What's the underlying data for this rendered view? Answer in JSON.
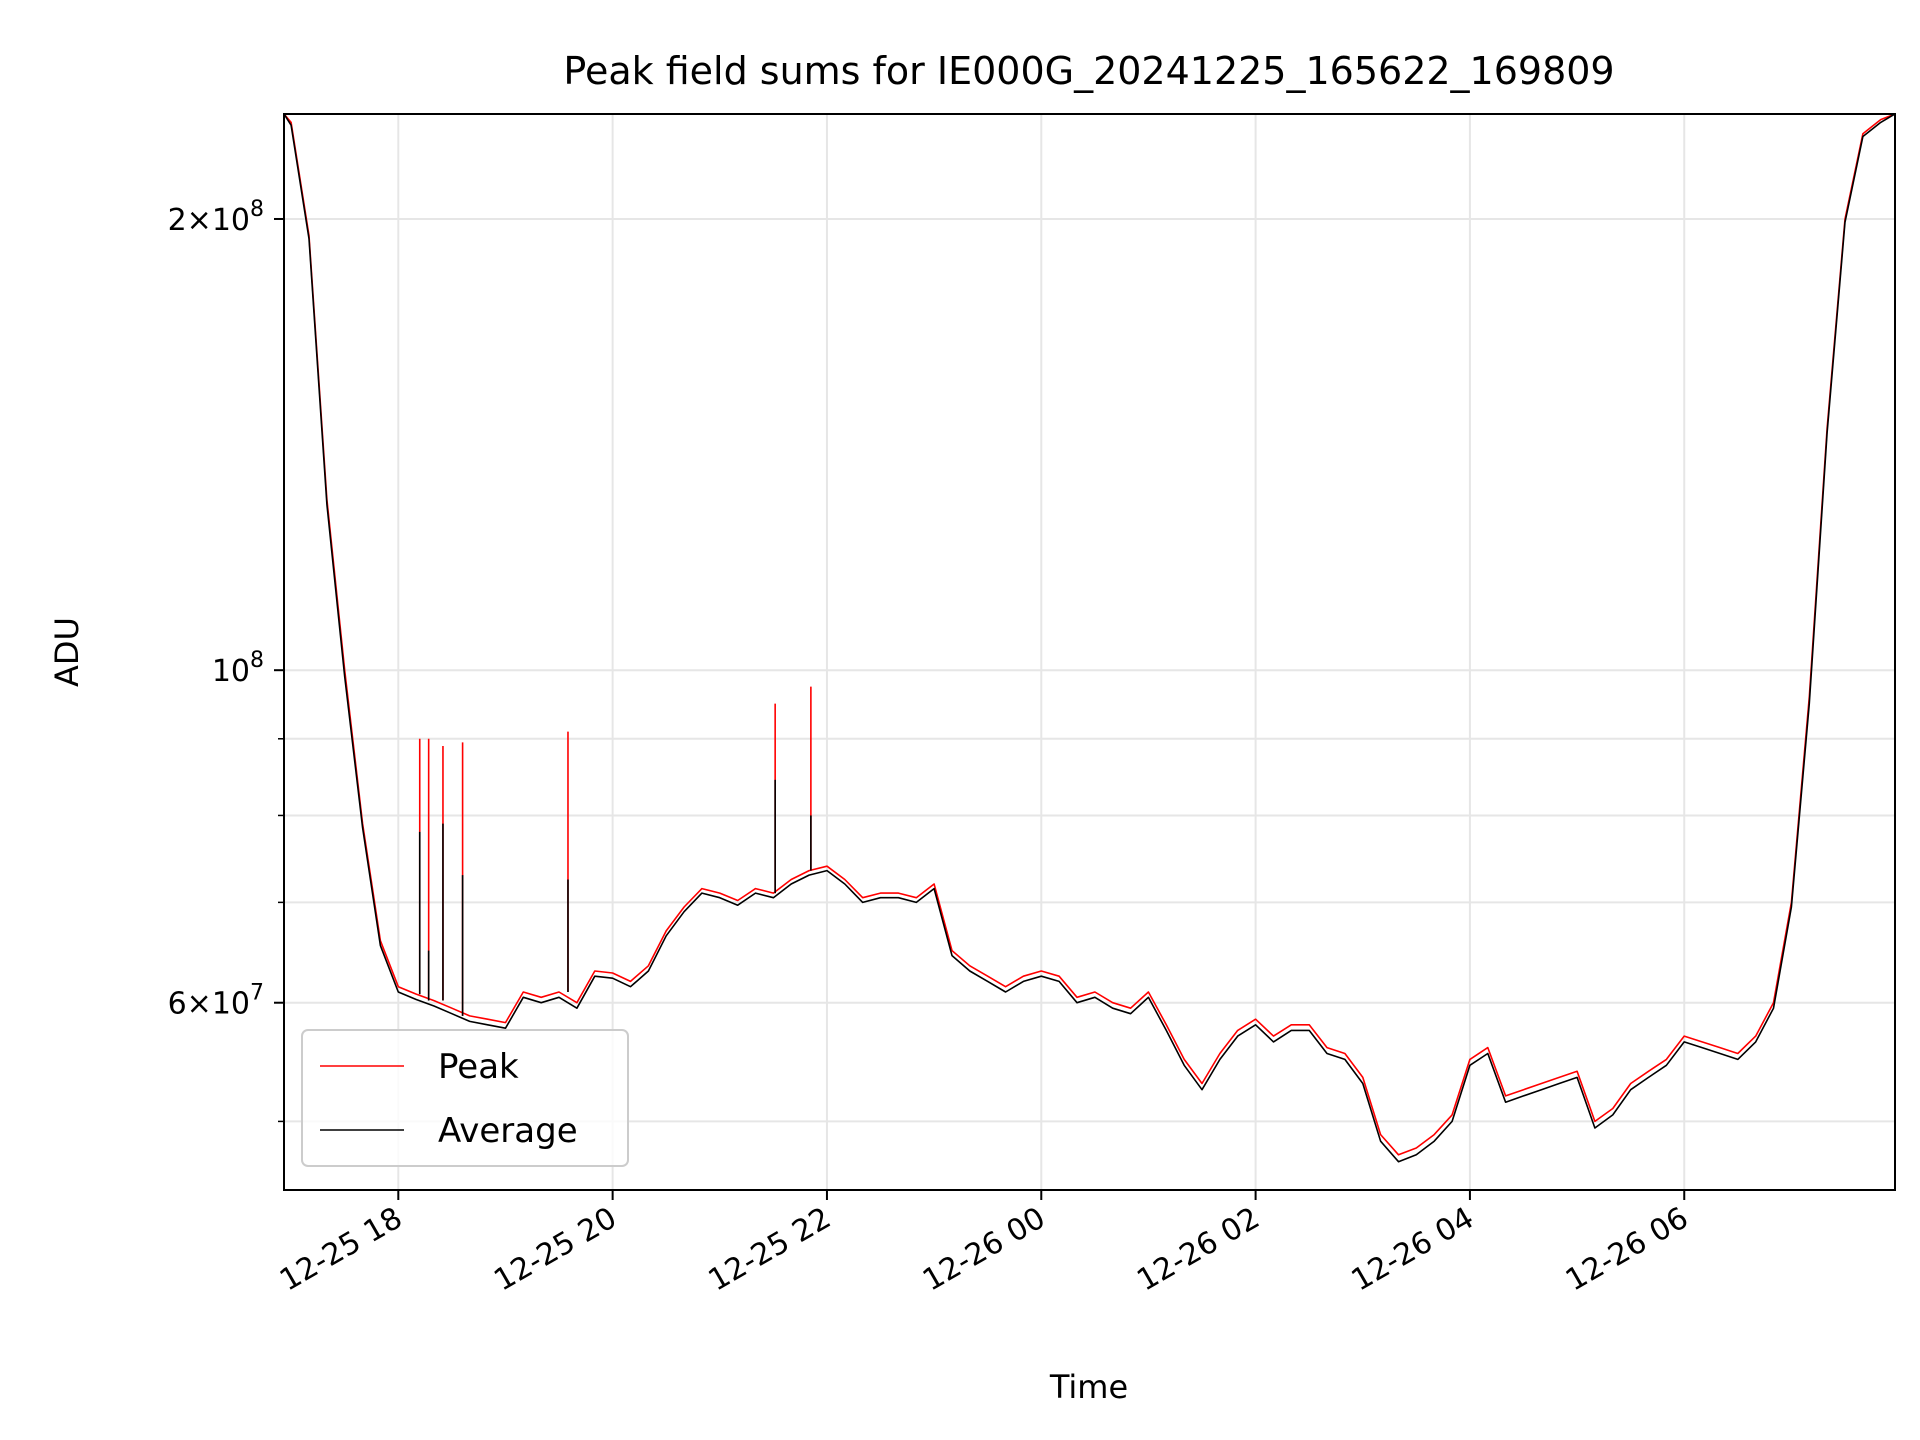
{
  "chart_data": {
    "type": "line",
    "title": "Peak field sums for IE000G_20241225_165622_169809",
    "xlabel": "Time",
    "ylabel": "ADU",
    "y_scale": "log",
    "ylim": [
      45000000,
      235000000
    ],
    "xlim": [
      "2024-12-25 16:56",
      "2024-12-26 07:58"
    ],
    "grid": true,
    "legend_position": "lower-left",
    "x_ticks": [
      "2024-12-25 18:00",
      "2024-12-25 20:00",
      "2024-12-25 22:00",
      "2024-12-26 00:00",
      "2024-12-26 02:00",
      "2024-12-26 04:00",
      "2024-12-26 06:00"
    ],
    "x_tick_labels": [
      "12-25 18",
      "12-25 20",
      "12-25 22",
      "12-26 00",
      "12-26 02",
      "12-26 04",
      "12-26 06"
    ],
    "y_ticks": [
      {
        "value": 200000000,
        "label": "2×10",
        "exp": "8"
      },
      {
        "value": 100000000,
        "label": "10",
        "exp": "8"
      },
      {
        "value": 60000000,
        "label": "6×10",
        "exp": "7"
      }
    ],
    "y_minor_ticks": [
      50000000,
      70000000,
      80000000,
      90000000
    ],
    "series": [
      {
        "name": "Peak",
        "color": "#ff0000",
        "x": [
          "2024-12-25 16:56",
          "2024-12-25 17:00",
          "2024-12-25 17:10",
          "2024-12-25 17:20",
          "2024-12-25 17:30",
          "2024-12-25 17:40",
          "2024-12-25 17:50",
          "2024-12-25 18:00",
          "2024-12-25 18:10",
          "2024-12-25 18:20",
          "2024-12-25 18:30",
          "2024-12-25 18:40",
          "2024-12-25 18:50",
          "2024-12-25 19:00",
          "2024-12-25 19:10",
          "2024-12-25 19:20",
          "2024-12-25 19:30",
          "2024-12-25 19:40",
          "2024-12-25 19:50",
          "2024-12-25 20:00",
          "2024-12-25 20:10",
          "2024-12-25 20:20",
          "2024-12-25 20:30",
          "2024-12-25 20:40",
          "2024-12-25 20:50",
          "2024-12-25 21:00",
          "2024-12-25 21:10",
          "2024-12-25 21:20",
          "2024-12-25 21:30",
          "2024-12-25 21:40",
          "2024-12-25 21:50",
          "2024-12-25 22:00",
          "2024-12-25 22:10",
          "2024-12-25 22:20",
          "2024-12-25 22:30",
          "2024-12-25 22:40",
          "2024-12-25 22:50",
          "2024-12-25 23:00",
          "2024-12-25 23:10",
          "2024-12-25 23:20",
          "2024-12-25 23:30",
          "2024-12-25 23:40",
          "2024-12-25 23:50",
          "2024-12-26 00:00",
          "2024-12-26 00:10",
          "2024-12-26 00:20",
          "2024-12-26 00:30",
          "2024-12-26 00:40",
          "2024-12-26 00:50",
          "2024-12-26 01:00",
          "2024-12-26 01:10",
          "2024-12-26 01:20",
          "2024-12-26 01:30",
          "2024-12-26 01:40",
          "2024-12-26 01:50",
          "2024-12-26 02:00",
          "2024-12-26 02:10",
          "2024-12-26 02:20",
          "2024-12-26 02:30",
          "2024-12-26 02:40",
          "2024-12-26 02:50",
          "2024-12-26 03:00",
          "2024-12-26 03:10",
          "2024-12-26 03:20",
          "2024-12-26 03:30",
          "2024-12-26 03:40",
          "2024-12-26 03:50",
          "2024-12-26 04:00",
          "2024-12-26 04:10",
          "2024-12-26 04:20",
          "2024-12-26 04:30",
          "2024-12-26 04:40",
          "2024-12-26 04:50",
          "2024-12-26 05:00",
          "2024-12-26 05:10",
          "2024-12-26 05:20",
          "2024-12-26 05:30",
          "2024-12-26 05:40",
          "2024-12-26 05:50",
          "2024-12-26 06:00",
          "2024-12-26 06:10",
          "2024-12-26 06:20",
          "2024-12-26 06:30",
          "2024-12-26 06:40",
          "2024-12-26 06:50",
          "2024-12-26 07:00",
          "2024-12-26 07:10",
          "2024-12-26 07:20",
          "2024-12-26 07:30",
          "2024-12-26 07:40",
          "2024-12-26 07:50",
          "2024-12-26 07:58"
        ],
        "y": [
          235000000,
          232000000,
          195000000,
          130000000,
          100000000,
          79000000,
          66000000,
          61500000,
          60800000,
          60200000,
          59500000,
          58800000,
          58500000,
          58200000,
          61000000,
          60500000,
          61000000,
          60000000,
          63000000,
          62800000,
          62000000,
          63500000,
          67000000,
          69500000,
          71500000,
          71000000,
          70200000,
          71500000,
          71000000,
          72500000,
          73500000,
          74000000,
          72500000,
          70500000,
          71000000,
          71000000,
          70500000,
          72000000,
          65000000,
          63500000,
          62500000,
          61500000,
          62500000,
          63000000,
          62500000,
          60500000,
          61000000,
          60000000,
          59500000,
          61000000,
          58000000,
          55000000,
          53000000,
          55500000,
          57500000,
          58500000,
          57000000,
          58000000,
          58000000,
          56000000,
          55500000,
          53500000,
          49000000,
          47500000,
          48000000,
          49000000,
          50500000,
          55000000,
          56000000,
          52000000,
          52500000,
          53000000,
          53500000,
          54000000,
          50000000,
          51000000,
          53000000,
          54000000,
          55000000,
          57000000,
          56500000,
          56000000,
          55500000,
          57000000,
          60000000,
          70000000,
          96000000,
          145000000,
          200000000,
          228000000,
          233000000,
          235000000
        ]
      },
      {
        "name": "Average",
        "color": "#000000",
        "x": [
          "2024-12-25 16:56",
          "2024-12-25 17:00",
          "2024-12-25 17:10",
          "2024-12-25 17:20",
          "2024-12-25 17:30",
          "2024-12-25 17:40",
          "2024-12-25 17:50",
          "2024-12-25 18:00",
          "2024-12-25 18:10",
          "2024-12-25 18:20",
          "2024-12-25 18:30",
          "2024-12-25 18:40",
          "2024-12-25 18:50",
          "2024-12-25 19:00",
          "2024-12-25 19:10",
          "2024-12-25 19:20",
          "2024-12-25 19:30",
          "2024-12-25 19:40",
          "2024-12-25 19:50",
          "2024-12-25 20:00",
          "2024-12-25 20:10",
          "2024-12-25 20:20",
          "2024-12-25 20:30",
          "2024-12-25 20:40",
          "2024-12-25 20:50",
          "2024-12-25 21:00",
          "2024-12-25 21:10",
          "2024-12-25 21:20",
          "2024-12-25 21:30",
          "2024-12-25 21:40",
          "2024-12-25 21:50",
          "2024-12-25 22:00",
          "2024-12-25 22:10",
          "2024-12-25 22:20",
          "2024-12-25 22:30",
          "2024-12-25 22:40",
          "2024-12-25 22:50",
          "2024-12-25 23:00",
          "2024-12-25 23:10",
          "2024-12-25 23:20",
          "2024-12-25 23:30",
          "2024-12-25 23:40",
          "2024-12-25 23:50",
          "2024-12-26 00:00",
          "2024-12-26 00:10",
          "2024-12-26 00:20",
          "2024-12-26 00:30",
          "2024-12-26 00:40",
          "2024-12-26 00:50",
          "2024-12-26 01:00",
          "2024-12-26 01:10",
          "2024-12-26 01:20",
          "2024-12-26 01:30",
          "2024-12-26 01:40",
          "2024-12-26 01:50",
          "2024-12-26 02:00",
          "2024-12-26 02:10",
          "2024-12-26 02:20",
          "2024-12-26 02:30",
          "2024-12-26 02:40",
          "2024-12-26 02:50",
          "2024-12-26 03:00",
          "2024-12-26 03:10",
          "2024-12-26 03:20",
          "2024-12-26 03:30",
          "2024-12-26 03:40",
          "2024-12-26 03:50",
          "2024-12-26 04:00",
          "2024-12-26 04:10",
          "2024-12-26 04:20",
          "2024-12-26 04:30",
          "2024-12-26 04:40",
          "2024-12-26 04:50",
          "2024-12-26 05:00",
          "2024-12-26 05:10",
          "2024-12-26 05:20",
          "2024-12-26 05:30",
          "2024-12-26 05:40",
          "2024-12-26 05:50",
          "2024-12-26 06:00",
          "2024-12-26 06:10",
          "2024-12-26 06:20",
          "2024-12-26 06:30",
          "2024-12-26 06:40",
          "2024-12-26 06:50",
          "2024-12-26 07:00",
          "2024-12-26 07:10",
          "2024-12-26 07:20",
          "2024-12-26 07:30",
          "2024-12-26 07:40",
          "2024-12-26 07:50",
          "2024-12-26 07:58"
        ],
        "y": [
          235000000,
          231000000,
          194000000,
          129000000,
          99000000,
          78500000,
          65500000,
          61000000,
          60300000,
          59700000,
          59000000,
          58300000,
          58000000,
          57700000,
          60500000,
          60000000,
          60500000,
          59500000,
          62500000,
          62300000,
          61500000,
          63000000,
          66500000,
          69000000,
          71000000,
          70500000,
          69700000,
          71000000,
          70500000,
          72000000,
          73000000,
          73500000,
          72000000,
          70000000,
          70500000,
          70500000,
          70000000,
          71500000,
          64500000,
          63000000,
          62000000,
          61000000,
          62000000,
          62500000,
          62000000,
          60000000,
          60500000,
          59500000,
          59000000,
          60500000,
          57500000,
          54500000,
          52500000,
          55000000,
          57000000,
          58000000,
          56500000,
          57500000,
          57500000,
          55500000,
          55000000,
          53000000,
          48500000,
          47000000,
          47500000,
          48500000,
          50000000,
          54500000,
          55500000,
          51500000,
          52000000,
          52500000,
          53000000,
          53500000,
          49500000,
          50500000,
          52500000,
          53500000,
          54500000,
          56500000,
          56000000,
          55500000,
          55000000,
          56500000,
          59500000,
          69500000,
          95000000,
          144000000,
          199000000,
          227000000,
          232000000,
          235000000
        ]
      }
    ],
    "spikes": [
      {
        "x": "2024-12-25 18:12",
        "peak": 90000000,
        "average": 78000000
      },
      {
        "x": "2024-12-25 18:17",
        "peak": 90000000,
        "average": 65000000
      },
      {
        "x": "2024-12-25 18:25",
        "peak": 89000000,
        "average": 79000000
      },
      {
        "x": "2024-12-25 18:36",
        "peak": 89500000,
        "average": 73000000
      },
      {
        "x": "2024-12-25 19:35",
        "peak": 91000000,
        "average": 72500000
      },
      {
        "x": "2024-12-25 21:31",
        "peak": 95000000,
        "average": 84500000
      },
      {
        "x": "2024-12-25 21:51",
        "peak": 97500000,
        "average": 80000000
      }
    ]
  }
}
